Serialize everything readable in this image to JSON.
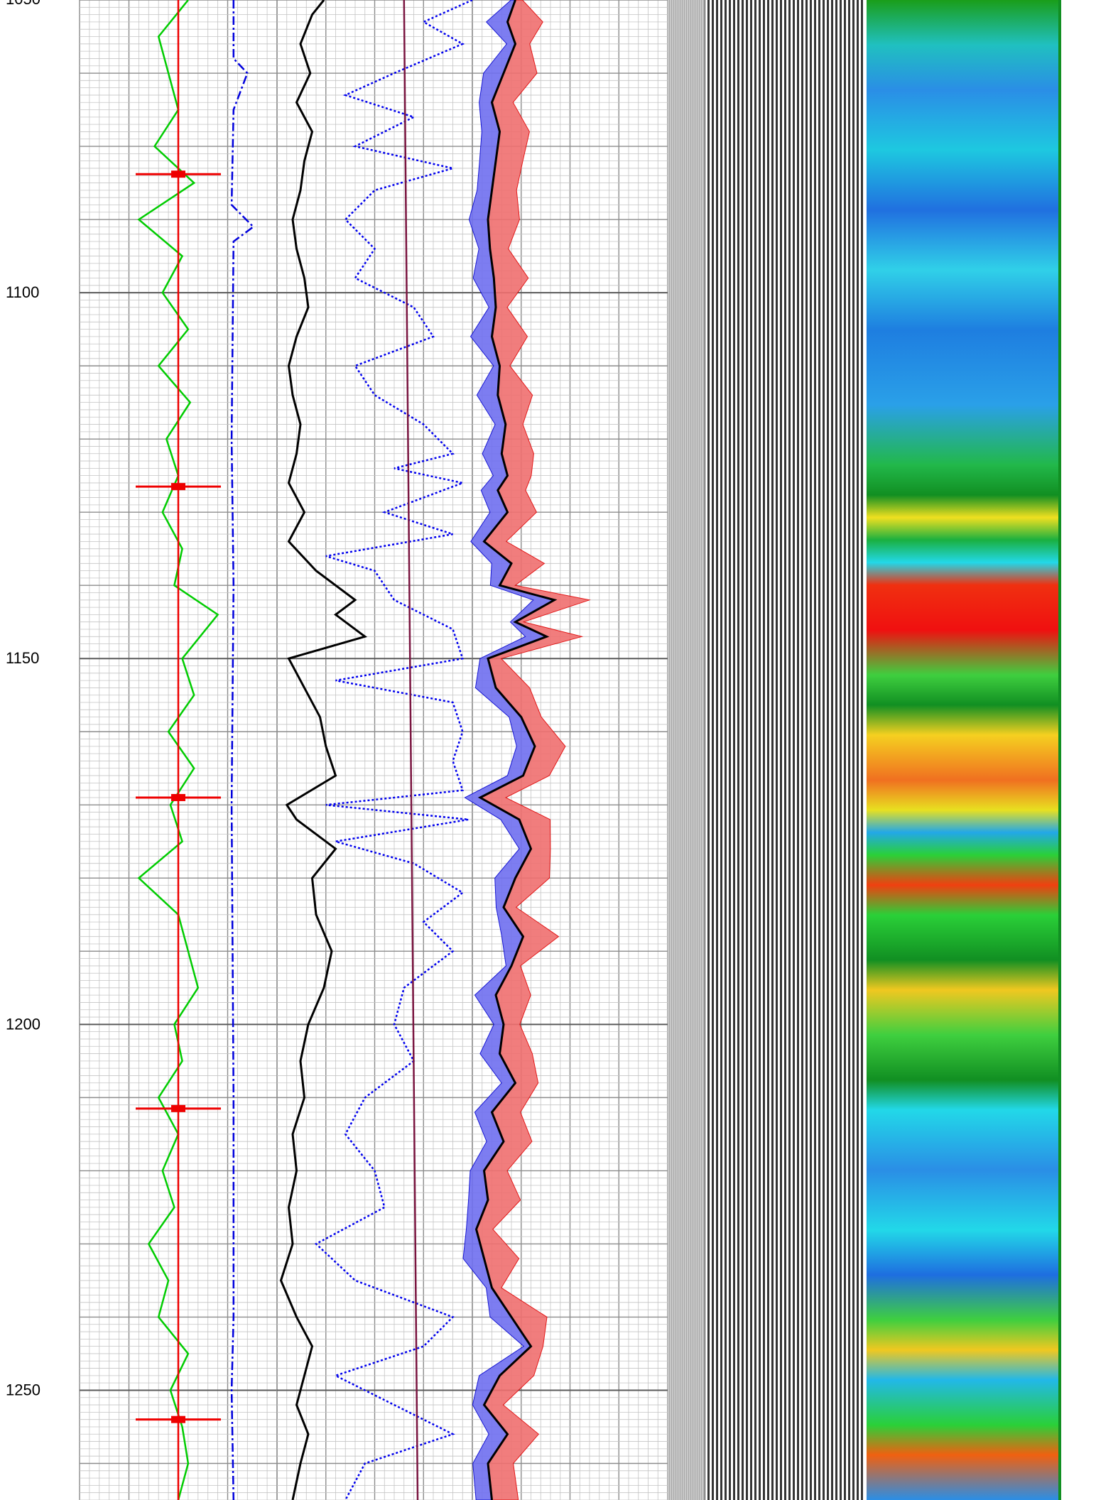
{
  "chart_data": {
    "type": "line",
    "title": "",
    "ylabel": "",
    "y_axis": {
      "range": [
        1060,
        1265
      ],
      "inverted": true,
      "labeled_ticks": [
        1100,
        1150,
        1200,
        1250
      ],
      "tick_labels": [
        "1100",
        "1150",
        "1200",
        "1250"
      ],
      "top_partial_label": "1050"
    },
    "tracks": [
      {
        "name": "track-1",
        "grid": true,
        "series": [
          {
            "id": "green-curve",
            "color": "#00cc00",
            "style": "solid",
            "depth": [
              1060,
              1065,
              1070,
              1075,
              1080,
              1085,
              1090,
              1095,
              1100,
              1105,
              1110,
              1115,
              1120,
              1125,
              1130,
              1135,
              1140,
              1144,
              1150,
              1155,
              1160,
              1165,
              1170,
              1175,
              1180,
              1185,
              1190,
              1195,
              1200,
              1205,
              1210,
              1215,
              1220,
              1225,
              1230,
              1235,
              1240,
              1245,
              1250,
              1255,
              1260,
              1265
            ],
            "value": [
              0.55,
              0.4,
              0.45,
              0.5,
              0.38,
              0.58,
              0.3,
              0.52,
              0.42,
              0.55,
              0.4,
              0.56,
              0.44,
              0.5,
              0.42,
              0.52,
              0.48,
              0.7,
              0.52,
              0.58,
              0.45,
              0.58,
              0.46,
              0.52,
              0.3,
              0.5,
              0.55,
              0.6,
              0.48,
              0.52,
              0.4,
              0.5,
              0.42,
              0.48,
              0.35,
              0.45,
              0.4,
              0.55,
              0.46,
              0.52,
              0.55,
              0.5
            ]
          },
          {
            "id": "blue-dashdot-curve",
            "color": "#0000dd",
            "style": "dashdot",
            "depth": [
              1060,
              1068,
              1070,
              1075,
              1088,
              1091,
              1093,
              1120,
              1140,
              1170,
              1210,
              1240,
              1250,
              1265
            ],
            "value": [
              0.78,
              0.78,
              0.85,
              0.78,
              0.77,
              0.88,
              0.78,
              0.77,
              0.78,
              0.77,
              0.78,
              0.78,
              0.77,
              0.78
            ]
          },
          {
            "id": "red-spiky-curve",
            "color": "#ee0000",
            "style": "solid",
            "depth": [
              1060,
              1265
            ],
            "value": [
              0.5,
              0.5
            ],
            "spikes": [
              1083.8,
              1126.5,
              1169.0,
              1211.5,
              1254.0
            ]
          }
        ]
      },
      {
        "name": "track-2",
        "grid": true,
        "series": [
          {
            "id": "black-curve",
            "color": "#000000",
            "style": "solid",
            "depth": [
              1060,
              1062,
              1066,
              1070,
              1074,
              1078,
              1082,
              1086,
              1090,
              1094,
              1098,
              1102,
              1106,
              1110,
              1114,
              1118,
              1122,
              1126,
              1130,
              1134,
              1138,
              1142,
              1144,
              1147,
              1150,
              1154,
              1158,
              1162,
              1166,
              1170,
              1172,
              1176,
              1180,
              1185,
              1190,
              1195,
              1200,
              1205,
              1210,
              1215,
              1220,
              1225,
              1230,
              1235,
              1240,
              1244,
              1248,
              1252,
              1256,
              1260,
              1265
            ],
            "value": [
              0.24,
              0.18,
              0.12,
              0.17,
              0.1,
              0.18,
              0.14,
              0.12,
              0.08,
              0.1,
              0.14,
              0.16,
              0.1,
              0.06,
              0.08,
              0.12,
              0.1,
              0.06,
              0.14,
              0.06,
              0.2,
              0.4,
              0.3,
              0.45,
              0.06,
              0.14,
              0.22,
              0.25,
              0.3,
              0.05,
              0.1,
              0.3,
              0.18,
              0.2,
              0.28,
              0.24,
              0.16,
              0.12,
              0.14,
              0.08,
              0.1,
              0.06,
              0.08,
              0.02,
              0.1,
              0.18,
              0.14,
              0.1,
              0.16,
              0.12,
              0.08
            ]
          },
          {
            "id": "blue-dotted-curve",
            "color": "#0000ee",
            "style": "dotted",
            "depth": [
              1060,
              1063,
              1066,
              1070,
              1073,
              1076,
              1080,
              1083,
              1086,
              1090,
              1094,
              1098,
              1102,
              1106,
              1110,
              1114,
              1118,
              1122,
              1124,
              1126,
              1130,
              1133,
              1136,
              1138,
              1142,
              1146,
              1150,
              1153,
              1156,
              1160,
              1164,
              1168,
              1170,
              1172,
              1175,
              1178,
              1182,
              1186,
              1190,
              1195,
              1200,
              1205,
              1210,
              1215,
              1220,
              1225,
              1230,
              1235,
              1240,
              1244,
              1248,
              1252,
              1256,
              1260,
              1265
            ],
            "value": [
              1.0,
              0.75,
              0.95,
              0.6,
              0.35,
              0.7,
              0.4,
              0.9,
              0.5,
              0.35,
              0.5,
              0.4,
              0.7,
              0.8,
              0.4,
              0.5,
              0.75,
              0.9,
              0.6,
              0.95,
              0.55,
              0.9,
              0.25,
              0.5,
              0.6,
              0.9,
              0.95,
              0.3,
              0.9,
              0.95,
              0.9,
              0.95,
              0.25,
              0.98,
              0.3,
              0.7,
              0.95,
              0.75,
              0.9,
              0.65,
              0.6,
              0.7,
              0.45,
              0.35,
              0.5,
              0.55,
              0.2,
              0.4,
              0.9,
              0.75,
              0.3,
              0.6,
              0.9,
              0.45,
              0.35
            ]
          },
          {
            "id": "maroon-curve",
            "color": "#7a1540",
            "style": "solid",
            "depth": [
              1060,
              1265
            ],
            "value": [
              0.65,
              0.72
            ]
          }
        ]
      },
      {
        "name": "track-3",
        "grid": true,
        "series": [
          {
            "id": "black-center-curve",
            "color": "#000000",
            "style": "solid",
            "depth": [
              1060,
              1063,
              1066,
              1070,
              1074,
              1078,
              1082,
              1086,
              1090,
              1094,
              1098,
              1102,
              1106,
              1110,
              1114,
              1118,
              1122,
              1125,
              1127,
              1130,
              1134,
              1137,
              1140,
              1142,
              1145,
              1147,
              1150,
              1154,
              1158,
              1162,
              1166,
              1169,
              1172,
              1176,
              1180,
              1184,
              1188,
              1192,
              1196,
              1200,
              1204,
              1208,
              1212,
              1216,
              1220,
              1224,
              1228,
              1232,
              1236,
              1240,
              1244,
              1248,
              1252,
              1256,
              1260,
              1265
            ],
            "value": [
              0.22,
              0.18,
              0.22,
              0.16,
              0.1,
              0.14,
              0.12,
              0.1,
              0.08,
              0.09,
              0.11,
              0.12,
              0.1,
              0.14,
              0.13,
              0.17,
              0.15,
              0.18,
              0.13,
              0.18,
              0.06,
              0.2,
              0.14,
              0.42,
              0.22,
              0.38,
              0.08,
              0.12,
              0.25,
              0.32,
              0.26,
              0.04,
              0.24,
              0.3,
              0.22,
              0.16,
              0.26,
              0.2,
              0.12,
              0.16,
              0.14,
              0.22,
              0.1,
              0.16,
              0.06,
              0.08,
              0.02,
              0.06,
              0.1,
              0.2,
              0.3,
              0.14,
              0.06,
              0.18,
              0.08,
              0.1
            ]
          }
        ]
      }
    ]
  }
}
